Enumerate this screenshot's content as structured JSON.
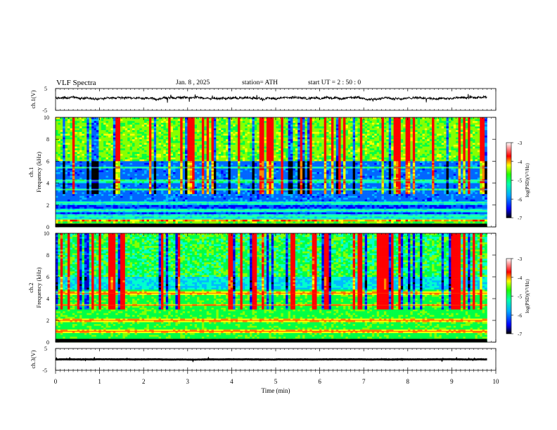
{
  "header": {
    "title": "VLF  Spectra",
    "date": "Jan.  8  , 2025",
    "station": "station= ATH",
    "start": "start  UT  =   2  : 50 : 0"
  },
  "chart_data": [
    {
      "type": "line",
      "name": "ch1-waveform",
      "ylabel": "ch.1(V)",
      "ylim": [
        -5,
        5
      ],
      "yticks": [
        "5",
        "-5"
      ],
      "xlim": [
        0,
        10
      ],
      "baseline": 0.6,
      "amplitude": 1.0
    },
    {
      "type": "heatmap",
      "name": "ch1-spectrogram",
      "ylabel": "ch.1\nFrequency  (kHz)",
      "ylabel_line1": "ch.1",
      "ylabel_line2": "Frequency  (kHz)",
      "ylim": [
        0,
        10
      ],
      "yticks": [
        "0",
        "2",
        "4",
        "6",
        "8",
        "10"
      ],
      "xlim": [
        0,
        9.8
      ],
      "colorbar": {
        "label": "log(PSD)(V²/Hz)",
        "range": [
          -7,
          -3
        ],
        "ticks": [
          "-3",
          "-4",
          "-5",
          "-6",
          "-7"
        ]
      },
      "bands_khz": [
        0.7,
        1.0,
        1.5,
        2.2,
        3.4,
        4.2,
        5.4
      ]
    },
    {
      "type": "heatmap",
      "name": "ch2-spectrogram",
      "ylabel_line1": "ch.2",
      "ylabel_line2": "Frequency  (kHz)",
      "ylim": [
        0,
        10
      ],
      "yticks": [
        "0",
        "2",
        "4",
        "6",
        "8",
        "10"
      ],
      "xlim": [
        0,
        9.8
      ],
      "colorbar": {
        "label": "log(PSD)(V²/Hz)",
        "range": [
          -7,
          -3
        ],
        "ticks": [
          "-3",
          "-4",
          "-5",
          "-6",
          "-7"
        ]
      },
      "bands_khz": [
        1.0,
        2.0,
        3.4,
        4.5
      ]
    },
    {
      "type": "line",
      "name": "ch3-waveform",
      "ylabel": "ch.3(V)",
      "ylim": [
        -5,
        5
      ],
      "yticks": [
        "5",
        "-5"
      ],
      "xlim": [
        0,
        10
      ],
      "baseline": 0.0,
      "amplitude": 0.15
    }
  ],
  "xaxis": {
    "label": "Time  (min)",
    "ticks": [
      "0",
      "1",
      "2",
      "3",
      "4",
      "5",
      "6",
      "7",
      "8",
      "9",
      "10"
    ],
    "range": [
      0,
      10
    ]
  },
  "colormap": [
    "#000000",
    "#0000cc",
    "#0000ff",
    "#0066ff",
    "#00bbff",
    "#00ffcc",
    "#00ff44",
    "#88ff00",
    "#ffff00",
    "#ff8800",
    "#ff0000",
    "#ffffff"
  ]
}
